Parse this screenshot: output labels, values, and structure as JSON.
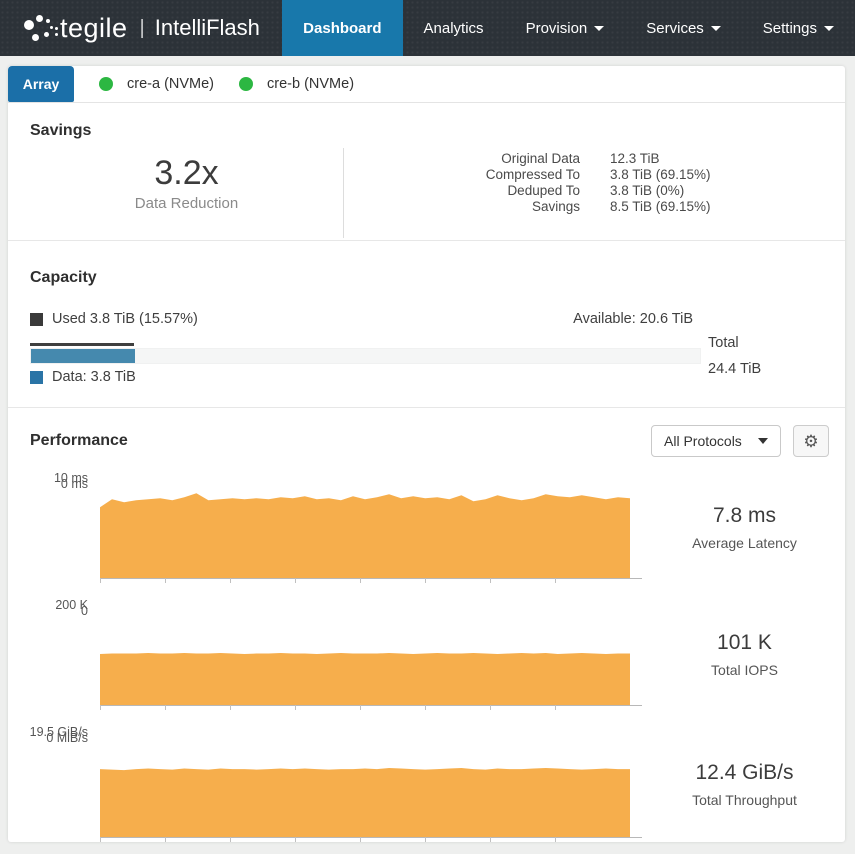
{
  "navbar": {
    "brand": {
      "logo_text": "tegile",
      "separator": "|",
      "product": "IntelliFlash"
    },
    "tabs": [
      {
        "label": "Dashboard",
        "active": true,
        "dropdown": false
      },
      {
        "label": "Analytics",
        "active": false,
        "dropdown": false
      },
      {
        "label": "Provision",
        "active": false,
        "dropdown": true
      },
      {
        "label": "Services",
        "active": false,
        "dropdown": true
      },
      {
        "label": "Settings",
        "active": false,
        "dropdown": true
      }
    ]
  },
  "node_bar": {
    "array_tab_label": "Array",
    "nodes": [
      {
        "label": "cre-a (NVMe)",
        "status": "online",
        "status_color": "#2cb742"
      },
      {
        "label": "cre-b (NVMe)",
        "status": "online",
        "status_color": "#2cb742"
      }
    ]
  },
  "savings": {
    "heading": "Savings",
    "ratio": "3.2x",
    "ratio_label": "Data Reduction",
    "rows": [
      {
        "label": "Original Data",
        "value": "12.3 TiB"
      },
      {
        "label": "Compressed To",
        "value": "3.8 TiB (69.15%)"
      },
      {
        "label": "Deduped To",
        "value": "3.8 TiB (0%)"
      },
      {
        "label": "Savings",
        "value": "8.5 TiB (69.15%)"
      }
    ]
  },
  "capacity": {
    "heading": "Capacity",
    "used_label": "Used 3.8 TiB (15.57%)",
    "used_percent": 15.57,
    "available_label": "Available: 20.6 TiB",
    "data_label": "Data: 3.8 TiB",
    "total_label": "Total",
    "total_value": "24.4 TiB",
    "bar_color": "#4589ae",
    "used_legend_color": "#3a3a3a",
    "data_legend_color": "#2a74a6"
  },
  "performance": {
    "heading": "Performance",
    "protocol_selected": "All Protocols",
    "gear_icon": "⚙"
  },
  "colors": {
    "navbar_bg": "#2c3238",
    "active_tab_blue": "#1878ab",
    "array_tab_blue": "#1b6fa8",
    "status_green": "#2cb742",
    "chart_orange": "#f6ae4c"
  },
  "chart_data": [
    {
      "type": "area",
      "title": "Latency",
      "y_max_label": "10 ms",
      "y_min_label": "0 ms",
      "ylim": [
        0,
        10
      ],
      "grid": false,
      "legend": false,
      "fill_color": "#f6ae4c",
      "stat_value": "7.8 ms",
      "stat_label": "Average Latency",
      "values": [
        7.0,
        7.8,
        7.5,
        7.7,
        7.8,
        7.9,
        7.7,
        8.0,
        8.4,
        7.7,
        7.8,
        7.9,
        7.8,
        7.9,
        7.8,
        8.0,
        7.9,
        8.1,
        7.8,
        7.9,
        7.7,
        8.1,
        7.8,
        8.0,
        8.3,
        7.9,
        8.1,
        7.9,
        8.0,
        7.8,
        8.2,
        7.6,
        7.8,
        8.2,
        7.9,
        7.7,
        7.9,
        8.3,
        8.1,
        8.0,
        8.2,
        8.0,
        7.8,
        8.0,
        7.9
      ]
    },
    {
      "type": "area",
      "title": "IOPS",
      "y_max_label": "200 K",
      "y_min_label": "0",
      "ylim": [
        0,
        200
      ],
      "grid": false,
      "legend": false,
      "fill_color": "#f6ae4c",
      "stat_value": "101 K",
      "stat_label": "Total IOPS",
      "values": [
        101,
        102,
        102,
        102,
        103,
        102,
        102,
        103,
        102,
        102,
        103,
        102,
        101,
        102,
        102,
        103,
        102,
        102,
        101,
        102,
        103,
        102,
        102,
        102,
        103,
        102,
        101,
        102,
        103,
        102,
        102,
        103,
        102,
        101,
        102,
        103,
        102,
        103,
        101,
        102,
        103,
        102,
        101,
        102,
        102
      ]
    },
    {
      "type": "area",
      "title": "Throughput",
      "y_max_label": "19.5 GiB/s",
      "y_min_label": "0 MiB/s",
      "ylim": [
        0,
        19.5
      ],
      "grid": false,
      "legend": false,
      "fill_color": "#f6ae4c",
      "stat_value": "12.4 GiB/s",
      "stat_label": "Total Throughput",
      "values": [
        12.5,
        12.4,
        12.3,
        12.5,
        12.6,
        12.5,
        12.4,
        12.6,
        12.5,
        12.4,
        12.6,
        12.5,
        12.5,
        12.4,
        12.5,
        12.6,
        12.5,
        12.6,
        12.5,
        12.4,
        12.5,
        12.5,
        12.6,
        12.5,
        12.7,
        12.6,
        12.5,
        12.4,
        12.5,
        12.6,
        12.7,
        12.5,
        12.4,
        12.6,
        12.5,
        12.5,
        12.6,
        12.7,
        12.6,
        12.5,
        12.4,
        12.5,
        12.6,
        12.5,
        12.5
      ]
    }
  ]
}
